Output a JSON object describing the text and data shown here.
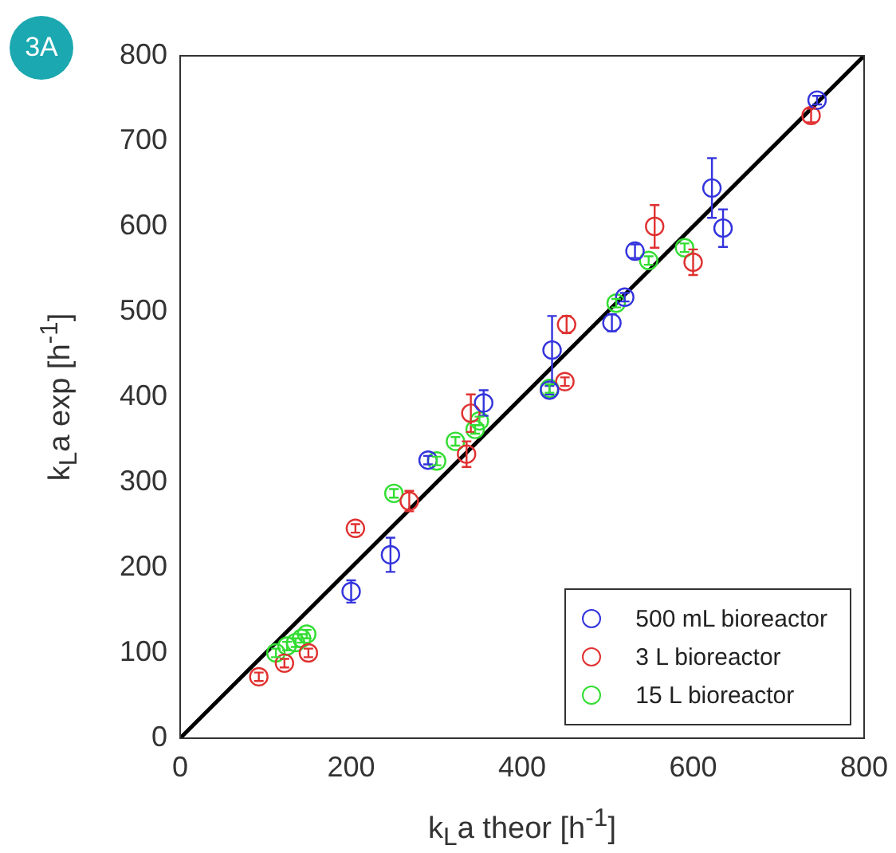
{
  "chart_data": {
    "type": "scatter",
    "xlabel": "k$_{L}$a theor [h$^{-1}$]",
    "ylabel": "k$_{L}$a exp [h$^{-1}$]",
    "annotations": [
      "3A"
    ],
    "xlim": [
      0,
      800
    ],
    "ylim": [
      0,
      800
    ],
    "xticks": [
      0,
      200,
      400,
      600,
      800
    ],
    "yticks": [
      0,
      100,
      200,
      300,
      400,
      500,
      600,
      700,
      800
    ],
    "grid": false,
    "legend": "bottom right",
    "marker": "circle",
    "series": [
      {
        "name": "500 mL bioreactor",
        "color": "#3333dd",
        "x": [
          200,
          246,
          290,
          355,
          432,
          435,
          505,
          520,
          532,
          622,
          635,
          745
        ],
        "values": [
          172,
          215,
          326,
          393,
          408,
          455,
          487,
          517,
          571,
          645,
          598,
          748
        ],
        "errors": [
          13,
          20,
          5,
          15,
          5,
          40,
          10,
          5,
          8,
          35,
          22,
          5
        ]
      },
      {
        "name": "3 L bioreactor",
        "color": "#e03030",
        "x": [
          92,
          122,
          150,
          205,
          268,
          335,
          340,
          450,
          452,
          555,
          600,
          738
        ],
        "values": [
          72,
          88,
          100,
          246,
          278,
          333,
          381,
          418,
          485,
          600,
          558,
          730
        ],
        "errors": [
          5,
          5,
          5,
          5,
          12,
          15,
          22,
          5,
          10,
          25,
          15,
          8
        ]
      },
      {
        "name": "15 L bioreactor",
        "color": "#33dd33",
        "x": [
          112,
          125,
          135,
          142,
          148,
          250,
          300,
          322,
          345,
          350,
          432,
          510,
          548,
          590
        ],
        "values": [
          100,
          108,
          112,
          117,
          122,
          287,
          325,
          348,
          362,
          372,
          410,
          510,
          560,
          575
        ],
        "errors": [
          5,
          5,
          5,
          5,
          5,
          5,
          5,
          5,
          5,
          5,
          5,
          5,
          5,
          5
        ]
      },
      {
        "type": "line",
        "marker": "none",
        "color": "#000000",
        "x": [
          0,
          800
        ],
        "values": [
          0,
          800
        ]
      }
    ]
  }
}
